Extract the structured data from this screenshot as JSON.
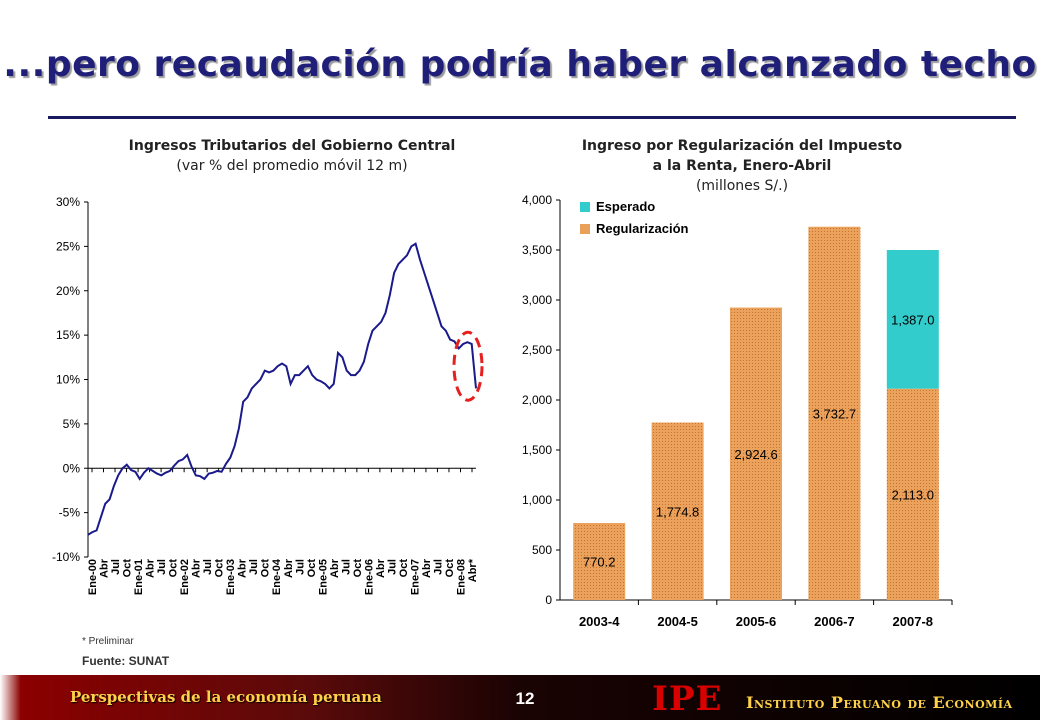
{
  "slide": {
    "title": "...pero recaudación podría haber alcanzado techo",
    "note": "* Preliminar",
    "source": "Fuente: SUNAT",
    "footer_left": "Perspectivas de la economía peruana",
    "page_number": "12",
    "logo": "IPE",
    "institute": "Instituto Peruano de Economía"
  },
  "colors": {
    "title": "#1f1f7a",
    "line": "#1a1a8c",
    "bar": "#e8a05a",
    "esperado": "#33cccc",
    "highlight": "#e52020"
  },
  "chart_data": [
    {
      "type": "line",
      "title": "Ingresos Tributarios del Gobierno Central",
      "subtitle": "(var % del promedio móvil 12 m)",
      "ylim": [
        -10,
        30
      ],
      "y_ticks": [
        "-10%",
        "-5%",
        "0%",
        "5%",
        "10%",
        "15%",
        "20%",
        "25%",
        "30%"
      ],
      "x_ticks": [
        "Ene-00",
        "Abr",
        "Jul",
        "Oct",
        "Ene-01",
        "Abr",
        "Jul",
        "Oct",
        "Ene-02",
        "Abr",
        "Jul",
        "Oct",
        "Ene-03",
        "Abr",
        "Jul",
        "Oct",
        "Ene-04",
        "Abr",
        "Jul",
        "Oct",
        "Ene-05",
        "Abr",
        "Jul",
        "Oct",
        "Ene-06",
        "Abr",
        "Jul",
        "Oct",
        "Ene-07",
        "Abr",
        "Jul",
        "Oct",
        "Ene-08",
        "Abr*"
      ],
      "series": [
        {
          "values": [
            -7.5,
            -7.2,
            -7.0,
            -5.5,
            -4.0,
            -3.5,
            -2.0,
            -0.8,
            0.0,
            0.4,
            -0.2,
            -0.4,
            -1.2,
            -0.5,
            0.0,
            -0.3,
            -0.6,
            -0.8,
            -0.5,
            -0.3,
            0.3,
            0.8,
            1.0,
            1.5,
            0.2,
            -0.8,
            -0.9,
            -1.2,
            -0.6,
            -0.5,
            -0.3,
            -0.4,
            0.5,
            1.2,
            2.5,
            4.5,
            7.5,
            8.0,
            9.0,
            9.5,
            10.0,
            11.0,
            10.8,
            11.0,
            11.5,
            11.8,
            11.5,
            9.5,
            10.5,
            10.5,
            11.0,
            11.5,
            10.5,
            10.0,
            9.8,
            9.5,
            9.0,
            9.5,
            13.0,
            12.5,
            11.0,
            10.5,
            10.5,
            11.0,
            12.0,
            14.0,
            15.5,
            16.0,
            16.5,
            17.5,
            19.5,
            22.0,
            23.0,
            23.5,
            24.0,
            25.0,
            25.3,
            23.5,
            22.0,
            20.5,
            19.0,
            17.5,
            16.0,
            15.5,
            14.5,
            14.3,
            13.5,
            14.0,
            14.2,
            14.0,
            9.0
          ]
        }
      ],
      "annotation": "highlight ellipse around latest data"
    },
    {
      "type": "bar",
      "title": "Ingreso por Regularización del Impuesto a la Renta, Enero-Abril",
      "title_line1": "Ingreso por Regularización del Impuesto",
      "title_line2": "a la Renta, Enero-Abril",
      "subtitle": "(millones S/.)",
      "categories": [
        "2003-4",
        "2004-5",
        "2005-6",
        "2006-7",
        "2007-8"
      ],
      "ylim": [
        0,
        4000
      ],
      "y_ticks": [
        "0",
        "500",
        "1,000",
        "1,500",
        "2,000",
        "2,500",
        "3,000",
        "3,500",
        "4,000"
      ],
      "legend_position": "top-left",
      "series": [
        {
          "name": "Regularización",
          "values": [
            770.2,
            1774.8,
            2924.6,
            3732.7,
            2113.0
          ],
          "labels": [
            "770.2",
            "1,774.8",
            "2,924.6",
            "3,732.7",
            "2,113.0"
          ]
        },
        {
          "name": "Esperado",
          "values": [
            null,
            null,
            null,
            null,
            1387.0
          ],
          "labels": [
            "",
            "",
            "",
            "",
            "1,387.0"
          ]
        }
      ]
    }
  ]
}
